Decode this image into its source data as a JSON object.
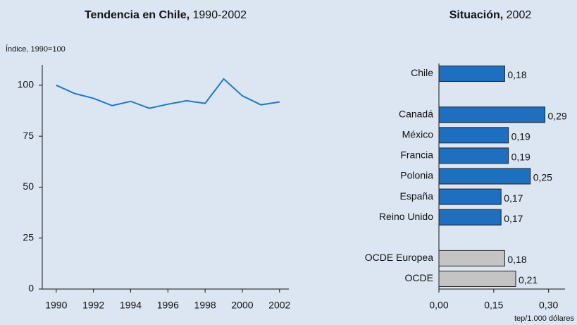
{
  "chart_data": [
    {
      "type": "line",
      "title": "Tendencia en Chile,",
      "title_period": "1990-2002",
      "ylabel": "Índice, 1990=100",
      "x": [
        1990,
        1991,
        1992,
        1993,
        1994,
        1995,
        1996,
        1997,
        1998,
        1999,
        2000,
        2001,
        2002
      ],
      "series": [
        {
          "color": "#1f78c8",
          "values": [
            100,
            95.9,
            93.6,
            90,
            92.1,
            88.7,
            90.7,
            92.4,
            91.1,
            103.1,
            94.8,
            90.4,
            91.8
          ]
        }
      ],
      "xlim": [
        1989.25,
        2002.5
      ],
      "xticks": [
        1990,
        1992,
        1994,
        1996,
        1998,
        2000,
        2002
      ],
      "ylim": [
        0,
        110
      ],
      "yticks": [
        0,
        25,
        50,
        75,
        100
      ]
    },
    {
      "type": "barh",
      "title": "Situación,",
      "title_period": "2002",
      "xlabel": "tep/1.000 dólares",
      "categories": [
        "Chile",
        null,
        "Canadá",
        "México",
        "Francia",
        "Polonia",
        "España",
        "Reino Unido",
        null,
        "OCDE Europea",
        "OCDE"
      ],
      "values": [
        0.18,
        null,
        0.29,
        0.19,
        0.19,
        0.25,
        0.17,
        0.17,
        null,
        0.18,
        0.21
      ],
      "value_labels": [
        "0,18",
        null,
        "0,29",
        "0,19",
        "0,19",
        "0,25",
        "0,17",
        "0,17",
        null,
        "0,18",
        "0,21"
      ],
      "colors": [
        "#1f6fc0",
        null,
        "#1f6fc0",
        "#1f6fc0",
        "#1f6fc0",
        "#1f6fc0",
        "#1f6fc0",
        "#1f6fc0",
        null,
        "#c4c4c4",
        "#c4c4c4"
      ],
      "xlim": [
        0,
        0.345
      ],
      "xticks": [
        {
          "value": 0,
          "label": "0,00"
        },
        {
          "value": 0.15,
          "label": "0,15"
        },
        {
          "value": 0.3,
          "label": "0,30"
        }
      ]
    }
  ]
}
